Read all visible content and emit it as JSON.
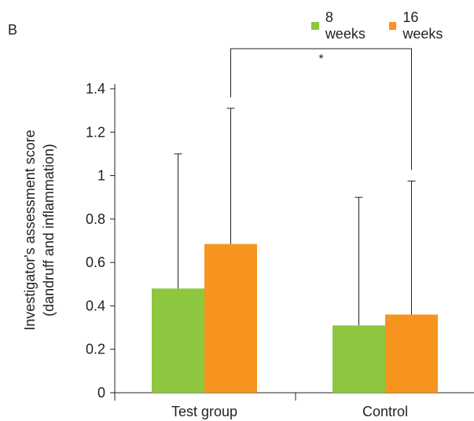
{
  "panel_label": "B",
  "significance_marker": "*",
  "colors": {
    "8 weeks": "#8dc63f",
    "16 weeks": "#f7941d",
    "axis": "#231f20"
  },
  "chart_data": {
    "type": "bar",
    "categories": [
      "Test group",
      "Control"
    ],
    "series": [
      {
        "name": "8 weeks",
        "values": [
          0.48,
          0.31
        ],
        "error_upper": [
          1.1,
          0.9
        ]
      },
      {
        "name": "16 weeks",
        "values": [
          0.685,
          0.36
        ],
        "error_upper": [
          1.31,
          0.975
        ]
      }
    ],
    "ylabel_line1": "Investigator's assessment score",
    "ylabel_line2": "(dandruff and inflammation)",
    "xlabel": "",
    "ylim": [
      0,
      1.4
    ],
    "yticks": [
      0,
      0.2,
      0.4,
      0.6,
      0.8,
      1,
      1.2,
      1.4
    ],
    "ytick_labels": [
      "0",
      "0.2",
      "0.4",
      "0.6",
      "0.8",
      "1",
      "1.2",
      "1.4"
    ],
    "grid": false,
    "legend_position": "top-right",
    "significance_between_series": "16 weeks"
  }
}
